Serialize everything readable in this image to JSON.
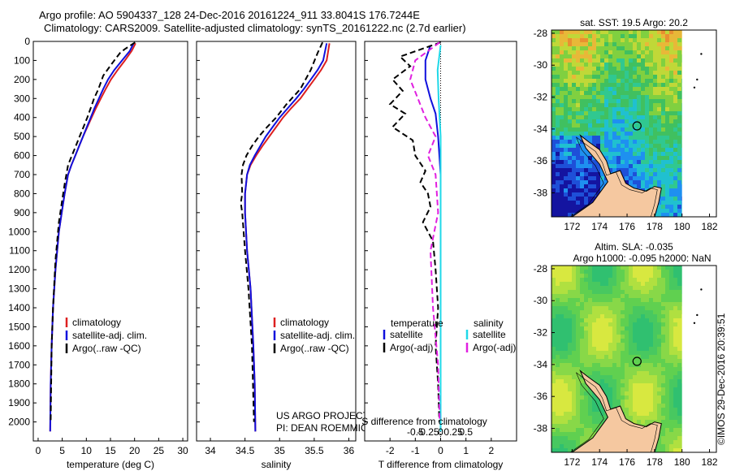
{
  "header": {
    "line1": "Argo profile: AO 5904337_128 24-Dec-2016 20161224_911 33.8041S 176.7244E",
    "line2": "Climatology: CARS2009. Satellite-adjusted climatology: synTS_20161222.nc (2.7d earlier)"
  },
  "watermark": "©IMOS 29-Dec-2016 20:39:51",
  "colors": {
    "climatology": "#dd2020",
    "satellite": "#1010dd",
    "argo": "#000000",
    "sal_satellite": "#20d8e8",
    "sal_argo": "#e020e0",
    "land": "#f5c8a0"
  },
  "chart_data": [
    {
      "id": "temperature",
      "type": "line",
      "xlabel": "temperature (deg C)",
      "ylabel": "",
      "xlim": [
        -1,
        31
      ],
      "ylim": [
        2100,
        0
      ],
      "xticks": [
        0,
        5,
        10,
        15,
        20,
        25,
        30
      ],
      "yticks": [
        0,
        100,
        200,
        300,
        400,
        500,
        600,
        700,
        800,
        900,
        1000,
        1100,
        1200,
        1300,
        1400,
        1500,
        1600,
        1700,
        1800,
        1900,
        2000
      ],
      "legend": [
        "climatology",
        "satellite-adj. clim.",
        "Argo(..raw -QC)"
      ],
      "series": [
        {
          "name": "climatology",
          "style": "solid",
          "color": "#dd2020",
          "x": [
            20.2,
            19.4,
            18.0,
            16.5,
            15.1,
            14.0,
            13.0,
            12.0,
            11.1,
            10.2,
            9.3,
            8.5,
            7.7,
            6.9,
            6.2,
            5.5,
            4.9,
            4.3,
            3.6,
            3.1,
            2.8,
            2.6,
            2.5
          ],
          "y": [
            10,
            50,
            100,
            150,
            200,
            250,
            300,
            350,
            400,
            450,
            500,
            550,
            600,
            650,
            700,
            800,
            900,
            1000,
            1200,
            1400,
            1600,
            1800,
            2050
          ]
        },
        {
          "name": "satellite-adj. clim.",
          "style": "solid",
          "color": "#1010dd",
          "x": [
            19.8,
            19.0,
            17.4,
            15.8,
            14.5,
            13.5,
            12.6,
            11.7,
            10.9,
            10.1,
            9.3,
            8.5,
            7.7,
            6.9,
            6.2,
            5.5,
            4.9,
            4.3,
            3.6,
            3.1,
            2.8,
            2.6,
            2.5
          ],
          "y": [
            10,
            50,
            100,
            150,
            200,
            250,
            300,
            350,
            400,
            450,
            500,
            550,
            600,
            650,
            700,
            800,
            900,
            1000,
            1200,
            1400,
            1600,
            1800,
            2050
          ]
        },
        {
          "name": "Argo(..raw -QC)",
          "style": "dash",
          "color": "#000000",
          "x": [
            20.1,
            18.0,
            17.0,
            16.4,
            15.2,
            13.5,
            12.5,
            11.6,
            10.9,
            10.2,
            9.4,
            8.6,
            7.8,
            7.0,
            6.2,
            5.5,
            4.9,
            4.3,
            3.6,
            3.1,
            2.8,
            2.6
          ],
          "y": [
            5,
            40,
            60,
            80,
            120,
            180,
            250,
            300,
            350,
            400,
            450,
            500,
            550,
            600,
            650,
            750,
            850,
            950,
            1150,
            1400,
            1600,
            2000
          ]
        }
      ]
    },
    {
      "id": "salinity",
      "type": "line",
      "xlabel": "salinity",
      "ylabel": "",
      "xlim": [
        33.8,
        36.1
      ],
      "ylim": [
        2100,
        0
      ],
      "xticks": [
        34,
        34.5,
        35,
        35.5,
        36
      ],
      "xticklabels": [
        "34",
        "34.5",
        "35",
        "35.5",
        "36"
      ],
      "legend": [
        "climatology",
        "satellite-adj. clim.",
        "Argo(..raw -QC)"
      ],
      "annotation": [
        "US ARGO PROJECT",
        "PI: DEAN ROEMMICH"
      ],
      "series": [
        {
          "name": "climatology",
          "style": "solid",
          "color": "#dd2020",
          "x": [
            35.72,
            35.68,
            35.6,
            35.5,
            35.4,
            35.3,
            35.17,
            35.05,
            34.95,
            34.85,
            34.75,
            34.66,
            34.58,
            34.53,
            34.5,
            34.5,
            34.53,
            34.58,
            34.62,
            34.64,
            34.65
          ],
          "y": [
            10,
            100,
            150,
            200,
            250,
            300,
            350,
            400,
            450,
            500,
            550,
            600,
            650,
            700,
            800,
            900,
            1100,
            1300,
            1600,
            1800,
            2050
          ]
        },
        {
          "name": "satellite-adj. clim.",
          "style": "solid",
          "color": "#1010dd",
          "x": [
            35.68,
            35.63,
            35.55,
            35.45,
            35.35,
            35.24,
            35.12,
            35.0,
            34.9,
            34.8,
            34.72,
            34.64,
            34.57,
            34.53,
            34.5,
            34.5,
            34.53,
            34.58,
            34.62,
            34.64,
            34.65
          ],
          "y": [
            10,
            100,
            150,
            200,
            250,
            300,
            350,
            400,
            450,
            500,
            550,
            600,
            650,
            700,
            800,
            900,
            1100,
            1300,
            1600,
            1800,
            2050
          ]
        },
        {
          "name": "Argo(..raw -QC)",
          "style": "dash",
          "color": "#000000",
          "x": [
            35.62,
            35.55,
            35.45,
            35.3,
            35.1,
            34.95,
            34.82,
            34.7,
            34.6,
            34.52,
            34.47,
            34.45,
            34.46,
            34.44,
            34.46,
            34.5,
            34.55,
            34.6,
            34.63
          ],
          "y": [
            5,
            60,
            150,
            250,
            330,
            400,
            450,
            500,
            550,
            600,
            650,
            700,
            800,
            850,
            900,
            1100,
            1300,
            1600,
            2000
          ]
        }
      ]
    },
    {
      "id": "difference",
      "type": "line",
      "xlabel": "T difference from climatology",
      "xlabel_top": "S difference from climatology",
      "xlim": [
        -3,
        3
      ],
      "ylim": [
        2100,
        0
      ],
      "xticks": [
        -2,
        -1,
        0,
        1,
        2
      ],
      "xticklabels": [
        "-2",
        "-1",
        "0",
        "1",
        "2"
      ],
      "xticks_top": [
        -0.5,
        -0.25,
        0,
        0.25,
        0.5
      ],
      "xticklabels_top": [
        "-0.5",
        "-0.25",
        "0",
        "0.25",
        "0.5"
      ],
      "legend_headers": [
        "temperature",
        "salinity"
      ],
      "legend": [
        "satellite",
        "Argo(-adj)",
        "satellite",
        "Argo(-adj)"
      ],
      "series": [
        {
          "name": "satellite",
          "variable": "temperature",
          "style": "solid",
          "color": "#1010dd",
          "x": [
            -0.4,
            -0.6,
            -0.6,
            -0.4,
            -0.2,
            -0.1,
            0.0,
            0.0,
            0.0
          ],
          "y": [
            20,
            100,
            200,
            300,
            380,
            500,
            700,
            1000,
            2050
          ]
        },
        {
          "name": "Argo(-adj)",
          "variable": "temperature",
          "style": "dash",
          "color": "#000000",
          "x": [
            0.0,
            -1.6,
            -1.2,
            -1.9,
            -1.5,
            -2.0,
            -1.4,
            -1.9,
            -1.1,
            -1.0,
            -0.6,
            -0.8,
            -0.5,
            -0.4,
            -0.7,
            -0.3,
            -0.2,
            -0.1,
            -0.2,
            -0.1,
            -0.05
          ],
          "y": [
            5,
            80,
            130,
            200,
            260,
            330,
            380,
            450,
            520,
            600,
            680,
            740,
            800,
            870,
            950,
            1050,
            1200,
            1400,
            1600,
            1800,
            2000
          ]
        },
        {
          "name": "satellite",
          "variable": "salinity",
          "style": "solid",
          "color": "#20d8e8",
          "x": [
            0.0,
            -0.06,
            -0.04,
            0.0,
            0.0,
            0.0
          ],
          "y": [
            20,
            150,
            300,
            500,
            1000,
            2050
          ]
        },
        {
          "name": "Argo(-adj)",
          "variable": "salinity",
          "style": "dash",
          "color": "#e020e0",
          "x": [
            -0.02,
            -0.5,
            -0.6,
            -0.45,
            -0.3,
            -0.1,
            -0.25,
            -0.1,
            -0.05,
            -0.2,
            -0.15,
            -0.05,
            -0.02
          ],
          "y": [
            5,
            100,
            200,
            300,
            400,
            500,
            600,
            700,
            900,
            1100,
            1400,
            1700,
            2000
          ]
        }
      ]
    },
    {
      "id": "map_sst",
      "type": "heatmap",
      "title": "sat. SST: 19.5 Argo: 20.2",
      "xlim": [
        170.5,
        182.5
      ],
      "ylim": [
        -39.5,
        -27.8
      ],
      "xticks": [
        172,
        174,
        176,
        178,
        180,
        182
      ],
      "yticks": [
        -28,
        -30,
        -32,
        -34,
        -36,
        -38
      ],
      "marker": {
        "lon": 176.7244,
        "lat": -33.8041
      }
    },
    {
      "id": "map_sla",
      "type": "heatmap",
      "title": [
        "Altim. SLA: -0.035",
        "Argo h1000: -0.095 h2000: NaN"
      ],
      "xlim": [
        170.5,
        182.5
      ],
      "ylim": [
        -39.5,
        -27.8
      ],
      "xticks": [
        172,
        174,
        176,
        178,
        180,
        182
      ],
      "yticks": [
        -28,
        -30,
        -32,
        -34,
        -36,
        -38
      ],
      "marker": {
        "lon": 176.7244,
        "lat": -33.8041
      }
    }
  ]
}
